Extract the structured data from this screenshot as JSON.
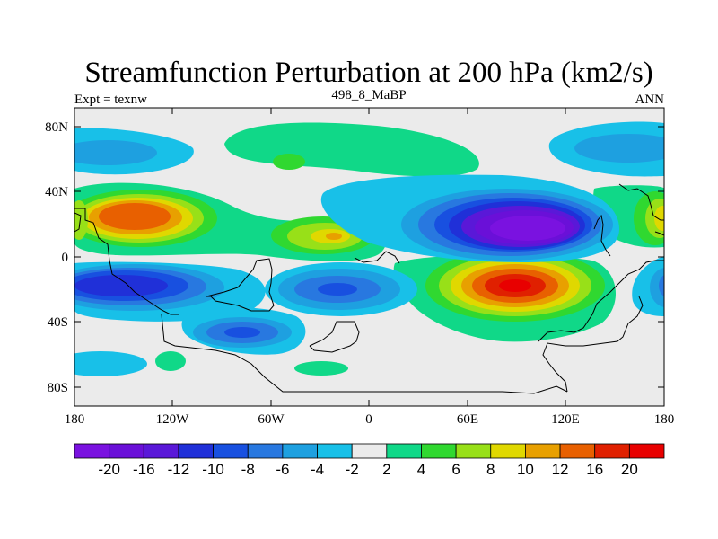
{
  "title": "Streamfunction Perturbation at 200 hPa (km2/s)",
  "left_subtitle": "Expt = texnw",
  "center_subtitle": "498_8_MaBP",
  "right_subtitle": "ANN",
  "axes": {
    "lat_ticks": [
      "80N",
      "40N",
      "0",
      "40S",
      "80S"
    ],
    "lon_ticks": [
      "180",
      "120W",
      "60W",
      "0",
      "60E",
      "120E",
      "180"
    ]
  },
  "colorbar": {
    "labels": [
      "-20",
      "-16",
      "-12",
      "-10",
      "-8",
      "-6",
      "-4",
      "-2",
      "2",
      "4",
      "6",
      "8",
      "10",
      "12",
      "16",
      "20"
    ],
    "colors": [
      "#7a12e0",
      "#6a10d8",
      "#5a18d8",
      "#2030d8",
      "#1850e0",
      "#2878e0",
      "#1ea0e0",
      "#18c0e8",
      "#ebebeb",
      "#10d888",
      "#30d830",
      "#98e018",
      "#e0d800",
      "#e8a000",
      "#e86000",
      "#e02000",
      "#e80000"
    ]
  },
  "colors": {
    "background": "#ebebeb",
    "coast": "#000000"
  },
  "map_features": [
    {
      "name": "pos-center-pacific",
      "lon": -125,
      "lat": 25,
      "value": 14
    },
    {
      "name": "pos-center-atlantic",
      "lon": -20,
      "lat": 15,
      "value": 10
    },
    {
      "name": "pos-center-south-indian",
      "lon": 100,
      "lat": -20,
      "value": 18
    },
    {
      "name": "pos-center-west-edge",
      "lon": -175,
      "lat": 20,
      "value": 6
    },
    {
      "name": "pos-center-east-edge",
      "lon": 175,
      "lat": 25,
      "value": 8
    },
    {
      "name": "pos-center-north-band",
      "lon": -60,
      "lat": 70,
      "value": 4
    },
    {
      "name": "pos-center-south-band",
      "lon": -25,
      "lat": -62,
      "value": 4
    },
    {
      "name": "neg-center-north-asia",
      "lon": 100,
      "lat": 20,
      "value": -22
    },
    {
      "name": "neg-center-south-pacific",
      "lon": -140,
      "lat": -18,
      "value": -11
    },
    {
      "name": "neg-center-south-atlantic",
      "lon": -20,
      "lat": -20,
      "value": -8
    },
    {
      "name": "neg-center-south-america",
      "lon": -75,
      "lat": -45,
      "value": -8
    },
    {
      "name": "neg-center-arctic-west",
      "lon": -160,
      "lat": 65,
      "value": -5
    },
    {
      "name": "neg-center-arctic-east",
      "lon": 160,
      "lat": 65,
      "value": -5
    }
  ]
}
